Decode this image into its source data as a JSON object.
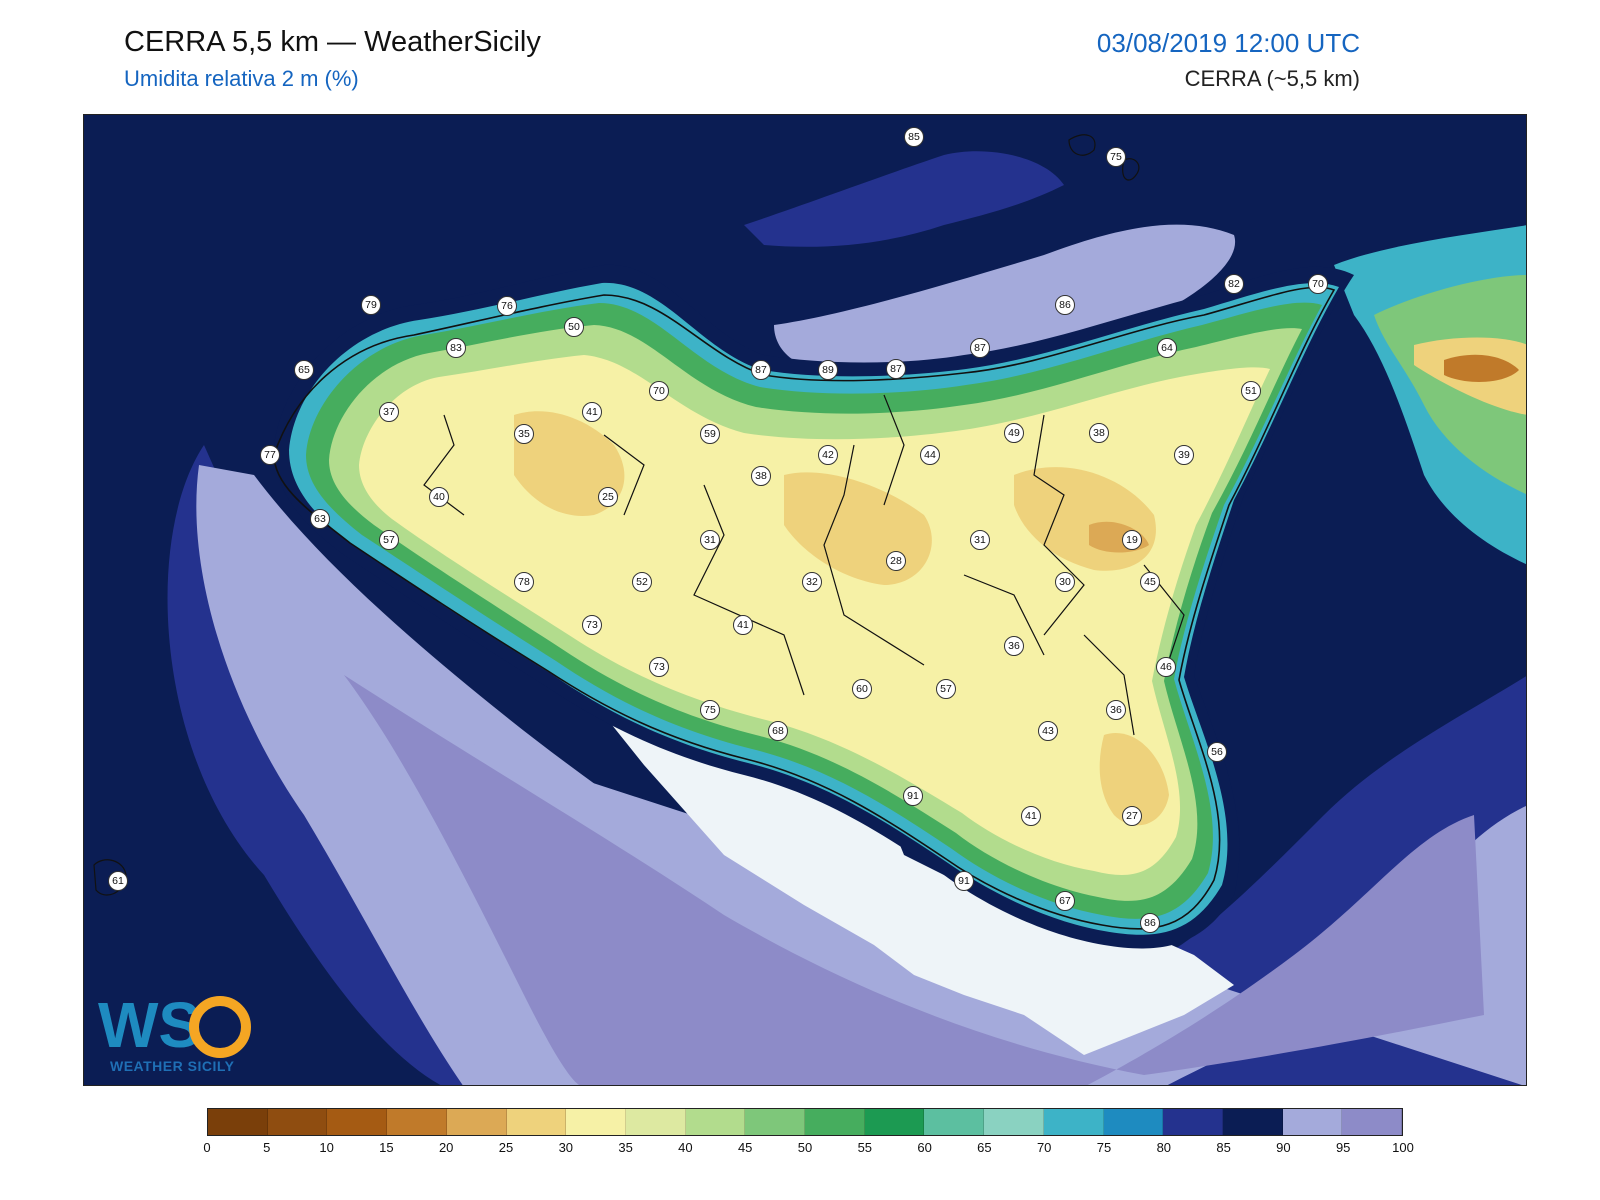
{
  "header": {
    "title": "CERRA 5,5 km — WeatherSicily",
    "subtitle": "Umidita relativa 2 m (%)",
    "datetime": "03/08/2019 12:00 UTC",
    "model": "CERRA (~5,5 km)"
  },
  "logo": {
    "text": "WEATHER SICILY",
    "letters": "WS"
  },
  "colorbar": {
    "ticks": [
      "0",
      "5",
      "10",
      "15",
      "20",
      "25",
      "30",
      "35",
      "40",
      "45",
      "50",
      "55",
      "60",
      "65",
      "70",
      "75",
      "80",
      "85",
      "90",
      "95",
      "100"
    ],
    "colors": [
      "#7a3f0a",
      "#8f4d10",
      "#a55b13",
      "#c07a2a",
      "#dca955",
      "#eed27c",
      "#f6f1a6",
      "#dde9a1",
      "#b2dc8d",
      "#7ec77a",
      "#46ad5e",
      "#1c9a52",
      "#5cbfa0",
      "#8ad2c1",
      "#3db3c7",
      "#1e8bc0",
      "#24328e",
      "#0b1d54",
      "#a4aadb",
      "#8d8bc8"
    ]
  },
  "stations": [
    {
      "id": "s1",
      "value": "85"
    },
    {
      "id": "s2",
      "value": "75"
    },
    {
      "id": "s3",
      "value": "79"
    },
    {
      "id": "s4",
      "value": "76"
    },
    {
      "id": "s5",
      "value": "50"
    },
    {
      "id": "s6",
      "value": "83"
    },
    {
      "id": "s7",
      "value": "65"
    },
    {
      "id": "s8",
      "value": "37"
    },
    {
      "id": "s9",
      "value": "77"
    },
    {
      "id": "s10",
      "value": "40"
    },
    {
      "id": "s11",
      "value": "63"
    },
    {
      "id": "s12",
      "value": "57"
    },
    {
      "id": "s13",
      "value": "35"
    },
    {
      "id": "s14",
      "value": "41"
    },
    {
      "id": "s15",
      "value": "25"
    },
    {
      "id": "s16",
      "value": "70"
    },
    {
      "id": "s17",
      "value": "59"
    },
    {
      "id": "s18",
      "value": "87"
    },
    {
      "id": "s19",
      "value": "89"
    },
    {
      "id": "s20",
      "value": "87"
    },
    {
      "id": "s21",
      "value": "86"
    },
    {
      "id": "s22",
      "value": "87"
    },
    {
      "id": "s23",
      "value": "82"
    },
    {
      "id": "s24",
      "value": "70"
    },
    {
      "id": "s25",
      "value": "64"
    },
    {
      "id": "s26",
      "value": "51"
    },
    {
      "id": "s27",
      "value": "38"
    },
    {
      "id": "s28",
      "value": "49"
    },
    {
      "id": "s29",
      "value": "44"
    },
    {
      "id": "s30",
      "value": "42"
    },
    {
      "id": "s31",
      "value": "39"
    },
    {
      "id": "s32",
      "value": "38"
    },
    {
      "id": "s33",
      "value": "31"
    },
    {
      "id": "s34",
      "value": "31"
    },
    {
      "id": "s35",
      "value": "19"
    },
    {
      "id": "s36",
      "value": "28"
    },
    {
      "id": "s37",
      "value": "32"
    },
    {
      "id": "s38",
      "value": "30"
    },
    {
      "id": "s39",
      "value": "45"
    },
    {
      "id": "s40",
      "value": "78"
    },
    {
      "id": "s41",
      "value": "52"
    },
    {
      "id": "s42",
      "value": "73"
    },
    {
      "id": "s43",
      "value": "41"
    },
    {
      "id": "s44",
      "value": "36"
    },
    {
      "id": "s45",
      "value": "46"
    },
    {
      "id": "s46",
      "value": "73"
    },
    {
      "id": "s47",
      "value": "60"
    },
    {
      "id": "s48",
      "value": "57"
    },
    {
      "id": "s49",
      "value": "36"
    },
    {
      "id": "s50",
      "value": "75"
    },
    {
      "id": "s51",
      "value": "68"
    },
    {
      "id": "s52",
      "value": "43"
    },
    {
      "id": "s53",
      "value": "56"
    },
    {
      "id": "s54",
      "value": "91"
    },
    {
      "id": "s55",
      "value": "41"
    },
    {
      "id": "s56",
      "value": "27"
    },
    {
      "id": "s57",
      "value": "91"
    },
    {
      "id": "s58",
      "value": "67"
    },
    {
      "id": "s59",
      "value": "86"
    },
    {
      "id": "s60",
      "value": "61"
    }
  ]
}
